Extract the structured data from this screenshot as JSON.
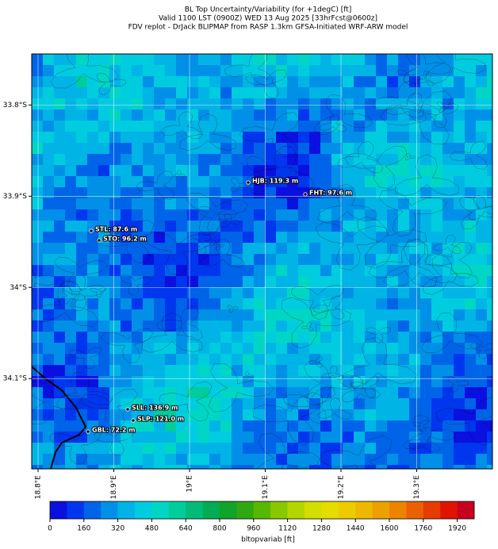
{
  "title_lines": [
    "BL Top Uncertainty/Variability (for +1degC) [ft]",
    "Valid 1100 LST (0900Z) WED 13 Aug 2025 [33hrFcst@0600z]",
    "FDV replot - DrJack BLIPMAP from RASP 1.3km GFSA-Initiated WRF-ARW model"
  ],
  "map": {
    "xlim": [
      18.7916,
      19.4
    ],
    "ylim": [
      33.744,
      34.199
    ],
    "xticks": [
      {
        "value": 18.8,
        "label": "18.8°E"
      },
      {
        "value": 18.9,
        "label": "18.9°E"
      },
      {
        "value": 19.0,
        "label": "19°E"
      },
      {
        "value": 19.1,
        "label": "19.1°E"
      },
      {
        "value": 19.2,
        "label": "19.2°E"
      },
      {
        "value": 19.3,
        "label": "19.3°E"
      }
    ],
    "yticks": [
      {
        "value": 33.8,
        "label": "33.8°S"
      },
      {
        "value": 33.9,
        "label": "33.9°S"
      },
      {
        "value": 34.0,
        "label": "34°S"
      },
      {
        "value": 34.1,
        "label": "34.1°S"
      }
    ],
    "grid": true,
    "stations": [
      "HJB: 119.3 m",
      "FHT: 97.6 m",
      "STL: 87.6 m",
      "STO: 96.2 m",
      "SLL: 136.9 m",
      "SLP: 121.0 m",
      "GBL: 72.2 m"
    ]
  },
  "colorbar": {
    "lim": [
      0,
      2000
    ],
    "ticks": [
      0,
      160,
      320,
      480,
      640,
      800,
      960,
      1120,
      1280,
      1440,
      1600,
      1760,
      1920
    ],
    "colors": [
      "#0a10e0",
      "#0036ee",
      "#0064e8",
      "#0090e8",
      "#00b4e6",
      "#00cce0",
      "#00d6c4",
      "#00cc9c",
      "#00bc78",
      "#00ac54",
      "#10a428",
      "#30a810",
      "#58b800",
      "#88c800",
      "#b4d600",
      "#d4de00",
      "#e6dc00",
      "#eccc00",
      "#eeb800",
      "#eea000",
      "#ec8400",
      "#ea6200",
      "#e63c00",
      "#de1400",
      "#c80020"
    ],
    "label": "bltopvariab [ft]"
  }
}
